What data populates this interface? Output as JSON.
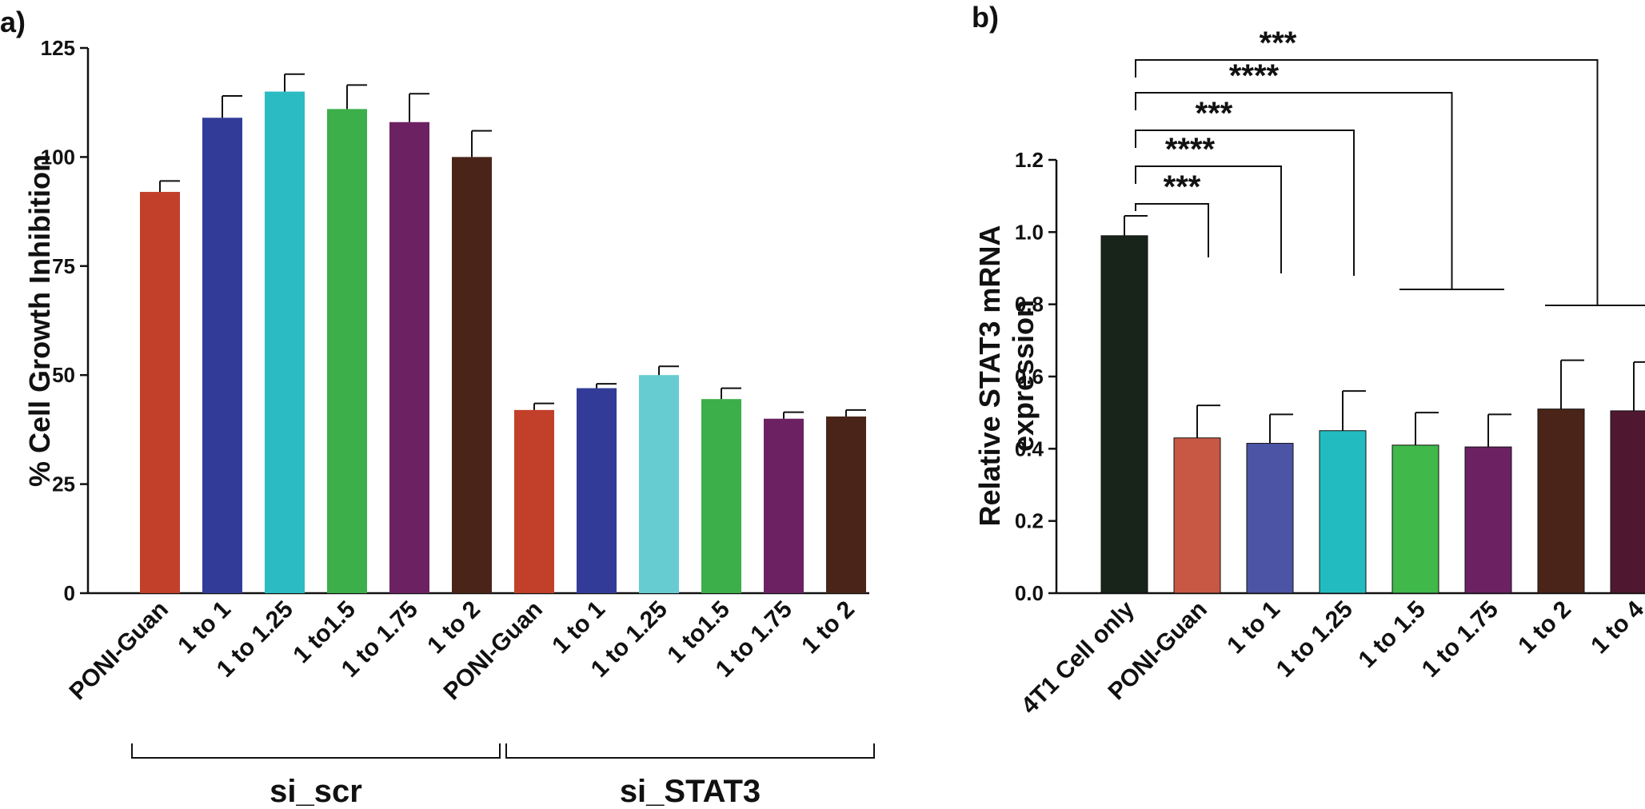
{
  "chart_data": [
    {
      "panel": "a)",
      "type": "bar",
      "ylabel": "% Cell Growth Inhibition",
      "ylim": [
        0,
        125
      ],
      "yticks": [
        "0",
        "25",
        "50",
        "75",
        "100",
        "125"
      ],
      "categories": [
        "PONI-Guan",
        "1 to 1",
        "1 to 1.25",
        "1 to1.5",
        "1 to 1.75",
        "1 to 2",
        "PONI-Guan",
        "1 to 1",
        "1 to 1.25",
        "1 to1.5",
        "1 to 1.75",
        "1 to 2"
      ],
      "values": [
        92,
        109,
        115,
        111,
        108,
        100,
        42,
        47,
        50,
        44.5,
        40,
        40.5
      ],
      "errors": [
        2.5,
        5,
        4,
        5.5,
        6.5,
        6,
        1.5,
        1,
        2,
        2.5,
        1.5,
        1.5
      ],
      "colors": [
        "#c2402a",
        "#323c98",
        "#2abcc2",
        "#3cae4a",
        "#6c2262",
        "#4a2418",
        "#c2402a",
        "#323c98",
        "#66ccd2",
        "#3cae4a",
        "#6c2262",
        "#4a2418"
      ],
      "groups": [
        {
          "label": "si_scr",
          "start": 0,
          "end": 5
        },
        {
          "label": "si_STAT3",
          "start": 6,
          "end": 11
        }
      ],
      "grid": false,
      "legend": "none"
    },
    {
      "panel": "b)",
      "type": "bar",
      "ylabel_lines": [
        "Relative STAT3 mRNA",
        "expression"
      ],
      "ylim": [
        0,
        1.2
      ],
      "yticks": [
        "0.0",
        "0.2",
        "0.4",
        "0.6",
        "0.8",
        "1.0",
        "1.2"
      ],
      "categories": [
        "4T1 Cell only",
        "PONI-Guan",
        "1 to 1",
        "1 to 1.25",
        "1 to 1.5",
        "1 to 1.75",
        "1 to 2",
        "1 to 4"
      ],
      "values": [
        0.99,
        0.43,
        0.415,
        0.45,
        0.41,
        0.405,
        0.51,
        0.505
      ],
      "errors": [
        0.055,
        0.09,
        0.08,
        0.11,
        0.09,
        0.09,
        0.135,
        0.135
      ],
      "colors": [
        "#18241a",
        "#c85844",
        "#4c54a6",
        "#22bcc0",
        "#40b84a",
        "#6c2262",
        "#4a2418",
        "#501830"
      ],
      "significance": [
        {
          "label": "***",
          "targets": [
            1
          ]
        },
        {
          "label": "****",
          "targets": [
            2
          ]
        },
        {
          "label": "***",
          "targets": [
            3
          ]
        },
        {
          "label": "****",
          "targets": [
            4,
            5
          ]
        },
        {
          "label": "***",
          "targets": [
            6,
            7
          ]
        }
      ],
      "grid": false,
      "legend": "none"
    }
  ]
}
